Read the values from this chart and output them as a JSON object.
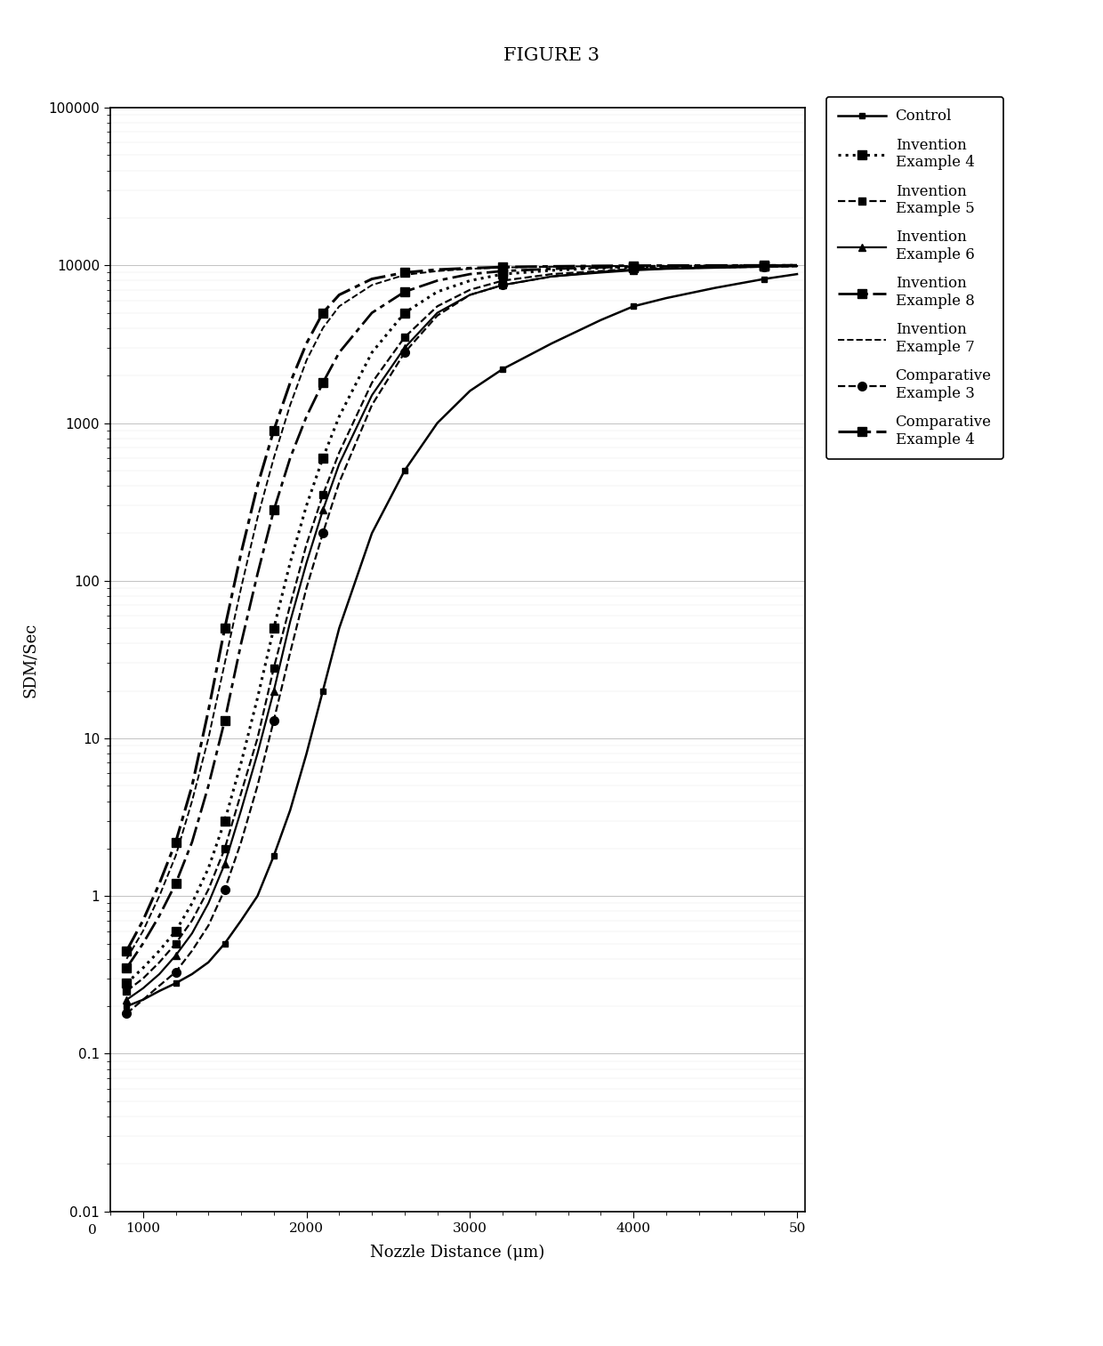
{
  "title": "FIGURE 3",
  "xlabel": "Nozzle Distance (μm)",
  "ylabel": "SDM/Sec",
  "series": [
    {
      "label": "Control",
      "linestyle": "-",
      "marker": "s",
      "markersize": 5,
      "linewidth": 1.8,
      "markevery": 2,
      "x": [
        900,
        1000,
        1100,
        1200,
        1300,
        1400,
        1500,
        1600,
        1700,
        1800,
        1900,
        2000,
        2100,
        2200,
        2400,
        2600,
        2800,
        3000,
        3200,
        3500,
        3800,
        4000,
        4200,
        4500,
        4800,
        5000
      ],
      "y": [
        0.2,
        0.22,
        0.25,
        0.28,
        0.32,
        0.38,
        0.5,
        0.7,
        1.0,
        1.8,
        3.5,
        8,
        20,
        50,
        200,
        500,
        1000,
        1600,
        2200,
        3200,
        4500,
        5500,
        6200,
        7200,
        8200,
        8800
      ]
    },
    {
      "label": "Invention\nExample 4",
      "linestyle": ":",
      "marker": "s",
      "markersize": 7,
      "linewidth": 2.2,
      "markevery": 2,
      "x": [
        900,
        1000,
        1100,
        1200,
        1300,
        1400,
        1500,
        1600,
        1700,
        1800,
        1900,
        2000,
        2100,
        2200,
        2400,
        2600,
        2800,
        3000,
        3200,
        3500,
        3800,
        4000,
        4200,
        4500,
        4800,
        5000
      ],
      "y": [
        0.28,
        0.35,
        0.45,
        0.6,
        0.9,
        1.5,
        3.0,
        7,
        18,
        50,
        130,
        300,
        600,
        1100,
        2800,
        5000,
        6800,
        8000,
        8800,
        9300,
        9600,
        9700,
        9800,
        9900,
        9950,
        10000
      ]
    },
    {
      "label": "Invention\nExample 5",
      "linestyle": "--",
      "marker": "s",
      "markersize": 6,
      "linewidth": 1.6,
      "markevery": 2,
      "x": [
        900,
        1000,
        1100,
        1200,
        1300,
        1400,
        1500,
        1600,
        1700,
        1800,
        1900,
        2000,
        2100,
        2200,
        2400,
        2600,
        2800,
        3000,
        3200,
        3500,
        3800,
        4000,
        4200,
        4500,
        4800,
        5000
      ],
      "y": [
        0.25,
        0.3,
        0.38,
        0.5,
        0.7,
        1.1,
        2.0,
        4.5,
        10,
        28,
        70,
        170,
        350,
        650,
        1800,
        3500,
        5500,
        7000,
        8000,
        8800,
        9200,
        9500,
        9600,
        9700,
        9850,
        9900
      ]
    },
    {
      "label": "Invention\nExample 6",
      "linestyle": "-",
      "marker": "^",
      "markersize": 6,
      "linewidth": 1.6,
      "markevery": 2,
      "x": [
        900,
        1000,
        1100,
        1200,
        1300,
        1400,
        1500,
        1600,
        1700,
        1800,
        1900,
        2000,
        2100,
        2200,
        2400,
        2600,
        2800,
        3000,
        3200,
        3500,
        3800,
        4000,
        4200,
        4500,
        4800,
        5000
      ],
      "y": [
        0.22,
        0.26,
        0.32,
        0.42,
        0.58,
        0.9,
        1.6,
        3.5,
        8,
        20,
        55,
        130,
        280,
        550,
        1500,
        3000,
        5000,
        6500,
        7500,
        8500,
        9000,
        9300,
        9500,
        9650,
        9800,
        9900
      ]
    },
    {
      "label": "Invention\nExample 8",
      "linestyle": "-.",
      "marker": "s",
      "markersize": 7,
      "linewidth": 2.0,
      "markevery": 2,
      "x": [
        900,
        1000,
        1100,
        1200,
        1300,
        1400,
        1500,
        1600,
        1700,
        1800,
        1900,
        2000,
        2100,
        2200,
        2400,
        2600,
        2800,
        3000,
        3200,
        3500,
        3800,
        4000,
        4200,
        4500,
        4800,
        5000
      ],
      "y": [
        0.35,
        0.5,
        0.75,
        1.2,
        2.2,
        5,
        13,
        40,
        110,
        280,
        600,
        1100,
        1800,
        2800,
        5000,
        6800,
        8000,
        8800,
        9200,
        9500,
        9700,
        9800,
        9850,
        9900,
        9950,
        10000
      ]
    },
    {
      "label": "Invention\nExample 7",
      "linestyle": "--",
      "marker": "None",
      "markersize": 0,
      "linewidth": 1.4,
      "markevery": 2,
      "x": [
        900,
        1000,
        1100,
        1200,
        1300,
        1400,
        1500,
        1600,
        1700,
        1800,
        1900,
        2000,
        2100,
        2200,
        2400,
        2600,
        2800,
        3000,
        3200,
        3500,
        3800,
        4000,
        4200,
        4500,
        4800,
        5000
      ],
      "y": [
        0.4,
        0.6,
        1.0,
        1.8,
        4.0,
        10,
        30,
        90,
        250,
        600,
        1300,
        2500,
        4000,
        5500,
        7500,
        8700,
        9200,
        9500,
        9700,
        9800,
        9900,
        9920,
        9940,
        9960,
        9980,
        10000
      ]
    },
    {
      "label": "Comparative\nExample 3",
      "linestyle": "--",
      "marker": "o",
      "markersize": 7,
      "linewidth": 1.6,
      "markevery": 2,
      "x": [
        900,
        1000,
        1100,
        1200,
        1300,
        1400,
        1500,
        1600,
        1700,
        1800,
        1900,
        2000,
        2100,
        2200,
        2400,
        2600,
        2800,
        3000,
        3200,
        3500,
        3800,
        4000,
        4200,
        4500,
        4800,
        5000
      ],
      "y": [
        0.18,
        0.22,
        0.27,
        0.33,
        0.45,
        0.65,
        1.1,
        2.2,
        5,
        13,
        35,
        90,
        200,
        420,
        1300,
        2800,
        4800,
        6500,
        7500,
        8500,
        9100,
        9400,
        9550,
        9700,
        9800,
        9850
      ]
    },
    {
      "label": "Comparative\nExample 4",
      "linestyle": "-.",
      "marker": "s",
      "markersize": 7,
      "linewidth": 2.2,
      "markevery": 2,
      "x": [
        900,
        1000,
        1100,
        1200,
        1300,
        1400,
        1500,
        1600,
        1700,
        1800,
        1900,
        2000,
        2100,
        2200,
        2400,
        2600,
        2800,
        3000,
        3200,
        3500,
        3800,
        4000,
        4200,
        4500,
        4800,
        5000
      ],
      "y": [
        0.45,
        0.7,
        1.2,
        2.2,
        5,
        15,
        50,
        150,
        400,
        900,
        1800,
        3200,
        5000,
        6500,
        8200,
        9000,
        9400,
        9600,
        9750,
        9850,
        9920,
        9950,
        9960,
        9980,
        9990,
        10000
      ]
    }
  ]
}
